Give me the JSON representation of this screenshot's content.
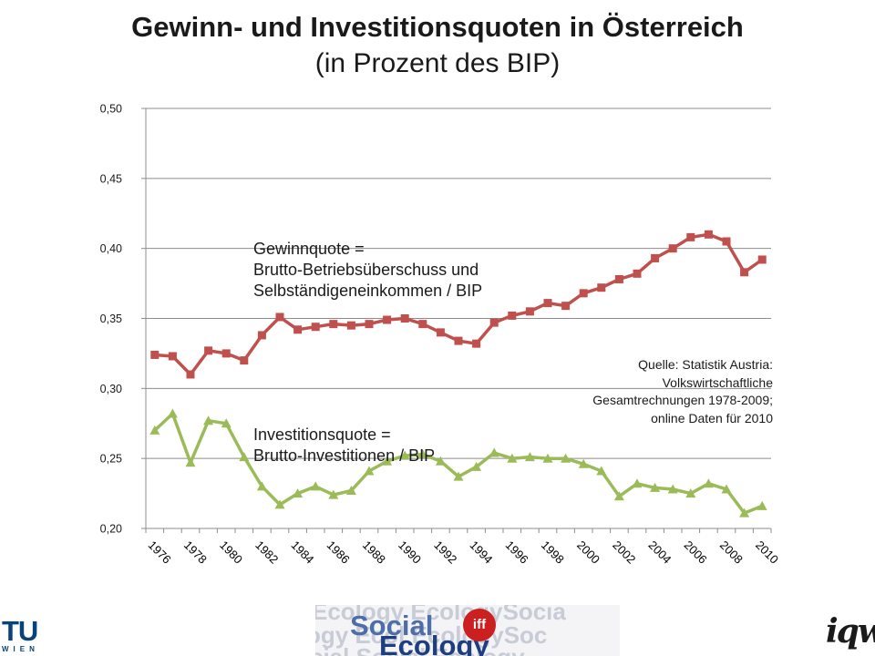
{
  "title": {
    "main": "Gewinn- und Investitionsquoten in Österreich",
    "sub": "(in Prozent des BIP)"
  },
  "annotations": {
    "gewinn": [
      "Gewinnquote =",
      "Brutto-Betriebsüberschuss und",
      "Selbständigeneinkommen  / BIP"
    ],
    "invest": [
      "Investitionsquote =",
      "Brutto-Investitionen / BIP"
    ],
    "quelle": [
      "Quelle: Statistik Austria:",
      "Volkswirtschaftliche",
      "Gesamtrechnungen 1978-2009;",
      "online Daten für 2010"
    ]
  },
  "chart_data": {
    "type": "line",
    "x": [
      1976,
      1977,
      1978,
      1979,
      1980,
      1981,
      1982,
      1983,
      1984,
      1985,
      1986,
      1987,
      1988,
      1989,
      1990,
      1991,
      1992,
      1993,
      1994,
      1995,
      1996,
      1997,
      1998,
      1999,
      2000,
      2001,
      2002,
      2003,
      2004,
      2005,
      2006,
      2007,
      2008,
      2009,
      2010
    ],
    "x_tick_labels": [
      "1976",
      "1978",
      "1980",
      "1982",
      "1984",
      "1986",
      "1988",
      "1990",
      "1992",
      "1994",
      "1996",
      "1998",
      "2000",
      "2002",
      "2004",
      "2006",
      "2008",
      "2010"
    ],
    "y_tick_labels": [
      "0,20",
      "0,25",
      "0,30",
      "0,35",
      "0,40",
      "0,45",
      "0,50"
    ],
    "ylim": [
      0.2,
      0.5
    ],
    "grid": true,
    "series": [
      {
        "marker": "square",
        "color": "#c0504d",
        "values": [
          0.324,
          0.323,
          0.31,
          0.327,
          0.325,
          0.32,
          0.338,
          0.351,
          0.342,
          0.344,
          0.346,
          0.345,
          0.346,
          0.349,
          0.35,
          0.346,
          0.34,
          0.334,
          0.332,
          0.347,
          0.352,
          0.355,
          0.361,
          0.359,
          0.368,
          0.372,
          0.378,
          0.382,
          0.393,
          0.4,
          0.408,
          0.41,
          0.405,
          0.383,
          0.392
        ]
      },
      {
        "marker": "triangle",
        "color": "#9bbb59",
        "values": [
          0.27,
          0.282,
          0.247,
          0.277,
          0.275,
          0.251,
          0.23,
          0.217,
          0.225,
          0.23,
          0.224,
          0.227,
          0.241,
          0.248,
          0.252,
          0.253,
          0.248,
          0.237,
          0.244,
          0.254,
          0.25,
          0.251,
          0.25,
          0.25,
          0.246,
          0.241,
          0.223,
          0.232,
          0.229,
          0.228,
          0.225,
          0.232,
          0.228,
          0.211,
          0.216
        ]
      }
    ]
  },
  "footer": {
    "tu_logo": "TU",
    "tu_sub": "WIEN",
    "eco_social": "Social",
    "eco_ecology": "Ecology",
    "iff": "iff",
    "iqw": "iqw"
  }
}
